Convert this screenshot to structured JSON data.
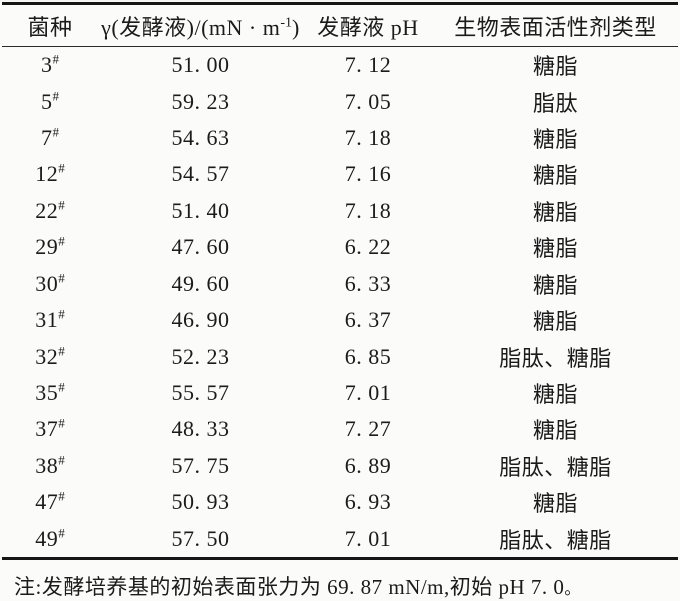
{
  "table": {
    "headers": {
      "strain": "菌种",
      "gamma_pre": "γ(发酵液)/(mN · m",
      "gamma_sup": "-1",
      "gamma_post": ")",
      "ph": "发酵液 pH",
      "type": "生物表面活性剂类型"
    },
    "strain_suffix": "#",
    "rows": [
      {
        "strain": "3",
        "gamma": "51. 00",
        "ph": "7. 12",
        "type": "糖脂"
      },
      {
        "strain": "5",
        "gamma": "59. 23",
        "ph": "7. 05",
        "type": "脂肽"
      },
      {
        "strain": "7",
        "gamma": "54. 63",
        "ph": "7. 18",
        "type": "糖脂"
      },
      {
        "strain": "12",
        "gamma": "54. 57",
        "ph": "7. 16",
        "type": "糖脂"
      },
      {
        "strain": "22",
        "gamma": "51. 40",
        "ph": "7. 18",
        "type": "糖脂"
      },
      {
        "strain": "29",
        "gamma": "47. 60",
        "ph": "6. 22",
        "type": "糖脂"
      },
      {
        "strain": "30",
        "gamma": "49. 60",
        "ph": "6. 33",
        "type": "糖脂"
      },
      {
        "strain": "31",
        "gamma": "46. 90",
        "ph": "6. 37",
        "type": "糖脂"
      },
      {
        "strain": "32",
        "gamma": "52. 23",
        "ph": "6. 85",
        "type": "脂肽、糖脂"
      },
      {
        "strain": "35",
        "gamma": "55. 57",
        "ph": "7. 01",
        "type": "糖脂"
      },
      {
        "strain": "37",
        "gamma": "48. 33",
        "ph": "7. 27",
        "type": "糖脂"
      },
      {
        "strain": "38",
        "gamma": "57. 75",
        "ph": "6. 89",
        "type": "脂肽、糖脂"
      },
      {
        "strain": "47",
        "gamma": "50. 93",
        "ph": "6. 93",
        "type": "糖脂"
      },
      {
        "strain": "49",
        "gamma": "57. 50",
        "ph": "7. 01",
        "type": "脂肽、糖脂"
      }
    ]
  },
  "note": {
    "text": "注:发酵培养基的初始表面张力为 69. 87 mN/m,初始 pH 7. 0",
    "suffix": "。"
  },
  "colors": {
    "text": "#1b1b1b",
    "rule": "#161616",
    "background": "#fbfbfa"
  },
  "chart_data": {
    "type": "table",
    "columns": [
      "菌种",
      "γ(发酵液)/(mN·m-1)",
      "发酵液 pH",
      "生物表面活性剂类型"
    ],
    "rows": [
      [
        "3#",
        51.0,
        7.12,
        "糖脂"
      ],
      [
        "5#",
        59.23,
        7.05,
        "脂肽"
      ],
      [
        "7#",
        54.63,
        7.18,
        "糖脂"
      ],
      [
        "12#",
        54.57,
        7.16,
        "糖脂"
      ],
      [
        "22#",
        51.4,
        7.18,
        "糖脂"
      ],
      [
        "29#",
        47.6,
        6.22,
        "糖脂"
      ],
      [
        "30#",
        49.6,
        6.33,
        "糖脂"
      ],
      [
        "31#",
        46.9,
        6.37,
        "糖脂"
      ],
      [
        "32#",
        52.23,
        6.85,
        "脂肽、糖脂"
      ],
      [
        "35#",
        55.57,
        7.01,
        "糖脂"
      ],
      [
        "37#",
        48.33,
        7.27,
        "糖脂"
      ],
      [
        "38#",
        57.75,
        6.89,
        "脂肽、糖脂"
      ],
      [
        "47#",
        50.93,
        6.93,
        "糖脂"
      ],
      [
        "49#",
        57.5,
        7.01,
        "脂肽、糖脂"
      ]
    ],
    "note": "发酵培养基的初始表面张力为 69.87 mN/m,初始 pH 7.0"
  }
}
